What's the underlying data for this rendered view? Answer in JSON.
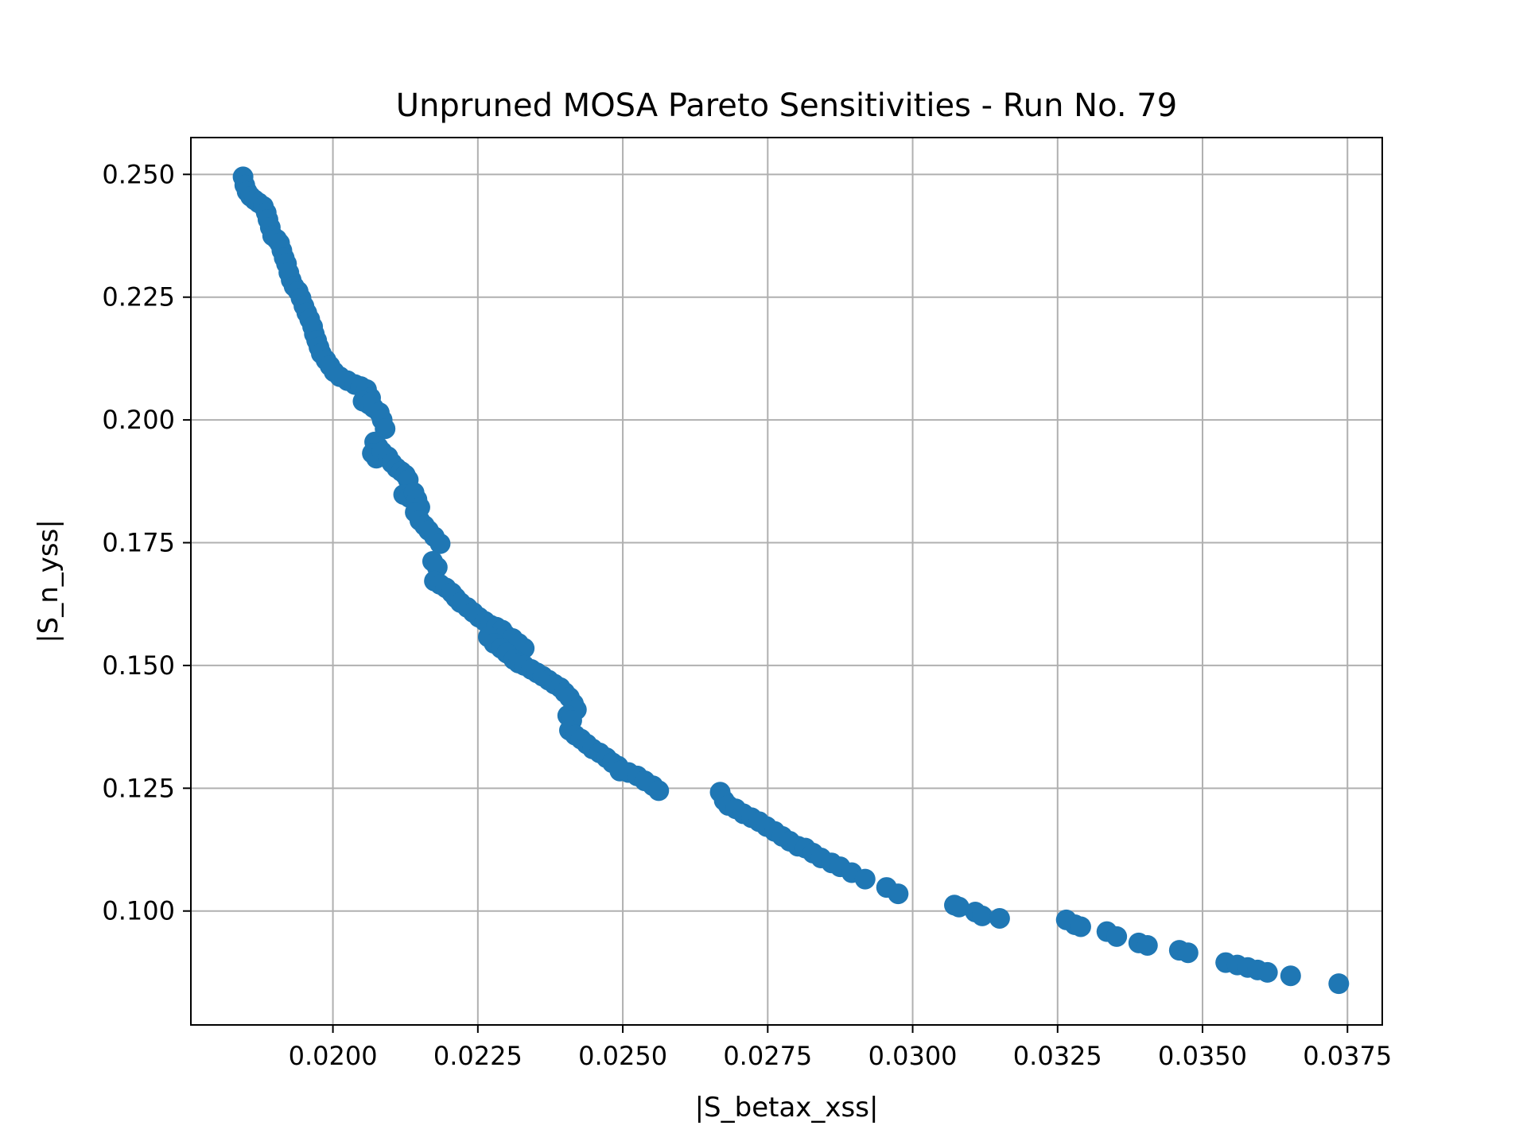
{
  "chart_data": {
    "type": "scatter",
    "title": "Unpruned MOSA Pareto Sensitivities - Run No. 79",
    "xlabel": "|S_betax_xss|",
    "ylabel": "|S_n_yss|",
    "xlim": [
      0.01755,
      0.0381
    ],
    "ylim": [
      0.0768,
      0.2575
    ],
    "xticks": [
      0.02,
      0.0225,
      0.025,
      0.0275,
      0.03,
      0.0325,
      0.035,
      0.0375
    ],
    "xtick_labels": [
      "0.0200",
      "0.0225",
      "0.0250",
      "0.0275",
      "0.0300",
      "0.0325",
      "0.0350",
      "0.0375"
    ],
    "yticks": [
      0.1,
      0.125,
      0.15,
      0.175,
      0.2,
      0.225,
      0.25
    ],
    "ytick_labels": [
      "0.100",
      "0.125",
      "0.150",
      "0.175",
      "0.200",
      "0.225",
      "0.250"
    ],
    "grid": true,
    "color": "#1f77b4",
    "series": [
      {
        "points": [
          [
            0.01845,
            0.2495
          ],
          [
            0.01848,
            0.2478
          ],
          [
            0.01852,
            0.2465
          ],
          [
            0.01858,
            0.2455
          ],
          [
            0.01865,
            0.2448
          ],
          [
            0.01872,
            0.2442
          ],
          [
            0.0188,
            0.2435
          ],
          [
            0.01885,
            0.2422
          ],
          [
            0.01888,
            0.2408
          ],
          [
            0.01892,
            0.2392
          ],
          [
            0.01896,
            0.2375
          ],
          [
            0.01903,
            0.2368
          ],
          [
            0.01908,
            0.236
          ],
          [
            0.01912,
            0.2345
          ],
          [
            0.01916,
            0.233
          ],
          [
            0.0192,
            0.2318
          ],
          [
            0.01924,
            0.23
          ],
          [
            0.01928,
            0.2285
          ],
          [
            0.01933,
            0.2272
          ],
          [
            0.0194,
            0.2262
          ],
          [
            0.01945,
            0.2248
          ],
          [
            0.0195,
            0.2232
          ],
          [
            0.01955,
            0.2218
          ],
          [
            0.0196,
            0.2205
          ],
          [
            0.01965,
            0.219
          ],
          [
            0.01968,
            0.2175
          ],
          [
            0.01972,
            0.2162
          ],
          [
            0.01976,
            0.2148
          ],
          [
            0.0198,
            0.2135
          ],
          [
            0.01988,
            0.2122
          ],
          [
            0.01995,
            0.211
          ],
          [
            0.02002,
            0.2098
          ],
          [
            0.02012,
            0.2088
          ],
          [
            0.02025,
            0.208
          ],
          [
            0.02038,
            0.2072
          ],
          [
            0.02048,
            0.2068
          ],
          [
            0.02058,
            0.2062
          ],
          [
            0.02065,
            0.2045
          ],
          [
            0.02052,
            0.2038
          ],
          [
            0.02062,
            0.2032
          ],
          [
            0.0207,
            0.2025
          ],
          [
            0.0208,
            0.2015
          ],
          [
            0.02085,
            0.2
          ],
          [
            0.0209,
            0.1982
          ],
          [
            0.02072,
            0.1955
          ],
          [
            0.02078,
            0.1945
          ],
          [
            0.02068,
            0.1932
          ],
          [
            0.02075,
            0.1922
          ],
          [
            0.02085,
            0.1935
          ],
          [
            0.02095,
            0.1925
          ],
          [
            0.02102,
            0.1912
          ],
          [
            0.0211,
            0.1902
          ],
          [
            0.02118,
            0.1895
          ],
          [
            0.02125,
            0.1888
          ],
          [
            0.0213,
            0.1878
          ],
          [
            0.02122,
            0.1848
          ],
          [
            0.02132,
            0.1842
          ],
          [
            0.0214,
            0.1852
          ],
          [
            0.02145,
            0.1838
          ],
          [
            0.0215,
            0.1822
          ],
          [
            0.02142,
            0.1812
          ],
          [
            0.0215,
            0.1795
          ],
          [
            0.02158,
            0.1785
          ],
          [
            0.02165,
            0.1775
          ],
          [
            0.02175,
            0.1762
          ],
          [
            0.02185,
            0.1748
          ],
          [
            0.02172,
            0.1712
          ],
          [
            0.0218,
            0.17
          ],
          [
            0.02175,
            0.1672
          ],
          [
            0.02185,
            0.1665
          ],
          [
            0.02195,
            0.1658
          ],
          [
            0.02205,
            0.1648
          ],
          [
            0.02212,
            0.1638
          ],
          [
            0.0222,
            0.1628
          ],
          [
            0.02232,
            0.1618
          ],
          [
            0.02242,
            0.1608
          ],
          [
            0.02252,
            0.1598
          ],
          [
            0.02262,
            0.159
          ],
          [
            0.02272,
            0.1582
          ],
          [
            0.02282,
            0.1578
          ],
          [
            0.02292,
            0.1572
          ],
          [
            0.02298,
            0.1562
          ],
          [
            0.0231,
            0.1555
          ],
          [
            0.0232,
            0.1545
          ],
          [
            0.0233,
            0.1535
          ],
          [
            0.02268,
            0.1558
          ],
          [
            0.02278,
            0.1545
          ],
          [
            0.0229,
            0.1535
          ],
          [
            0.023,
            0.1525
          ],
          [
            0.02312,
            0.1512
          ],
          [
            0.0232,
            0.1505
          ],
          [
            0.0233,
            0.15
          ],
          [
            0.02342,
            0.1492
          ],
          [
            0.02352,
            0.1485
          ],
          [
            0.02362,
            0.1478
          ],
          [
            0.02372,
            0.147
          ],
          [
            0.02382,
            0.1462
          ],
          [
            0.02392,
            0.1455
          ],
          [
            0.024,
            0.1445
          ],
          [
            0.02408,
            0.1435
          ],
          [
            0.02415,
            0.1422
          ],
          [
            0.0242,
            0.141
          ],
          [
            0.02405,
            0.1398
          ],
          [
            0.02412,
            0.1388
          ],
          [
            0.02408,
            0.1368
          ],
          [
            0.02418,
            0.1358
          ],
          [
            0.02428,
            0.135
          ],
          [
            0.02438,
            0.134
          ],
          [
            0.02448,
            0.133
          ],
          [
            0.0246,
            0.1322
          ],
          [
            0.02472,
            0.1312
          ],
          [
            0.02482,
            0.1302
          ],
          [
            0.02492,
            0.1295
          ],
          [
            0.02495,
            0.1285
          ],
          [
            0.0251,
            0.1282
          ],
          [
            0.02525,
            0.1275
          ],
          [
            0.02538,
            0.1265
          ],
          [
            0.02552,
            0.1255
          ],
          [
            0.02562,
            0.1245
          ],
          [
            0.02668,
            0.1242
          ],
          [
            0.02675,
            0.1225
          ],
          [
            0.02682,
            0.1215
          ],
          [
            0.02695,
            0.1208
          ],
          [
            0.02708,
            0.1198
          ],
          [
            0.02722,
            0.119
          ],
          [
            0.02735,
            0.1182
          ],
          [
            0.02748,
            0.1172
          ],
          [
            0.02762,
            0.1162
          ],
          [
            0.02775,
            0.1152
          ],
          [
            0.02788,
            0.1142
          ],
          [
            0.02802,
            0.1132
          ],
          [
            0.02815,
            0.1128
          ],
          [
            0.02828,
            0.1118
          ],
          [
            0.02842,
            0.1108
          ],
          [
            0.0286,
            0.1098
          ],
          [
            0.02875,
            0.109
          ],
          [
            0.02895,
            0.1078
          ],
          [
            0.02918,
            0.1065
          ],
          [
            0.02955,
            0.1048
          ],
          [
            0.02975,
            0.1035
          ],
          [
            0.03072,
            0.1012
          ],
          [
            0.0308,
            0.1008
          ],
          [
            0.03108,
            0.0998
          ],
          [
            0.0312,
            0.099
          ],
          [
            0.0315,
            0.0985
          ],
          [
            0.03265,
            0.0982
          ],
          [
            0.0328,
            0.0972
          ],
          [
            0.0329,
            0.0968
          ],
          [
            0.03335,
            0.0958
          ],
          [
            0.03352,
            0.0948
          ],
          [
            0.0339,
            0.0935
          ],
          [
            0.03405,
            0.093
          ],
          [
            0.0346,
            0.092
          ],
          [
            0.03475,
            0.0915
          ],
          [
            0.0354,
            0.0895
          ],
          [
            0.0356,
            0.089
          ],
          [
            0.03578,
            0.0885
          ],
          [
            0.03595,
            0.088
          ],
          [
            0.03612,
            0.0875
          ],
          [
            0.03652,
            0.0868
          ],
          [
            0.03735,
            0.0852
          ]
        ]
      }
    ]
  }
}
